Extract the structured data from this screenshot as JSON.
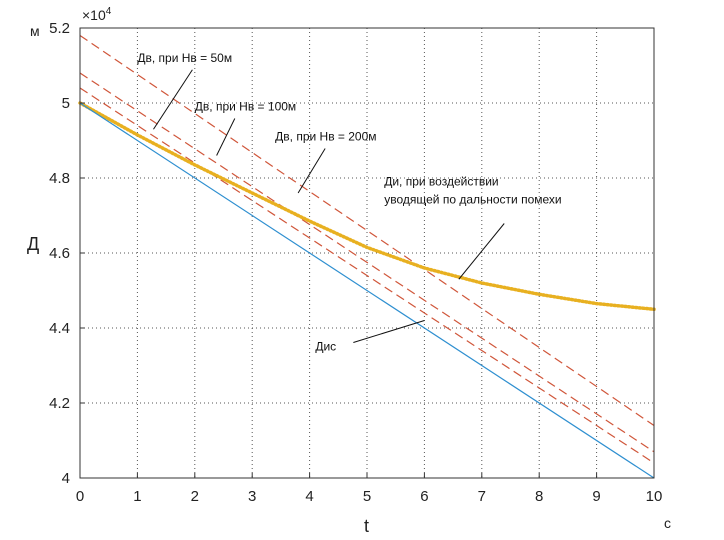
{
  "chart_data": {
    "type": "line",
    "xlim": [
      0,
      10
    ],
    "ylim": [
      40000,
      52000
    ],
    "x_ticks": [
      0,
      1,
      2,
      3,
      4,
      5,
      6,
      7,
      8,
      9,
      10
    ],
    "x_tick_labels": [
      "0",
      "1",
      "2",
      "3",
      "4",
      "5",
      "6",
      "7",
      "8",
      "9",
      "10"
    ],
    "y_ticks": [
      40000,
      42000,
      44000,
      46000,
      48000,
      50000,
      52000
    ],
    "y_tick_labels": [
      "4",
      "4.2",
      "4.4",
      "4.6",
      "4.8",
      "5",
      "5.2"
    ],
    "y_multiplier": "×10",
    "y_multiplier_exp": "4",
    "xlabel": "t",
    "ylabel": "Д",
    "x_unit": "с",
    "y_unit": "м",
    "grid": true,
    "series": [
      {
        "name": "Дв, при Нв = 50м",
        "style": "dashed",
        "color": "#d0563a",
        "x": [
          0,
          10
        ],
        "y": [
          51800,
          41400
        ]
      },
      {
        "name": "Дв, при Нв = 100м",
        "style": "dashed",
        "color": "#d0563a",
        "x": [
          0,
          10
        ],
        "y": [
          50800,
          40700
        ]
      },
      {
        "name": "Дв, при Нв = 200м",
        "style": "dashed",
        "color": "#d0563a",
        "x": [
          0,
          10
        ],
        "y": [
          50400,
          40400
        ]
      },
      {
        "name": "Ди, при воздействии уводящей по дальности помехи",
        "style": "dotted",
        "color": "#e8b020",
        "x": [
          0,
          1,
          2,
          3,
          4,
          5,
          6,
          7,
          8,
          9,
          10
        ],
        "y": [
          50000,
          49150,
          48350,
          47600,
          46850,
          46150,
          45600,
          45200,
          44900,
          44650,
          44500
        ]
      },
      {
        "name": "Дис",
        "style": "solid",
        "color": "#2e8fd0",
        "x": [
          0,
          10
        ],
        "y": [
          50000,
          40000
        ]
      }
    ],
    "annotations": [
      {
        "text": "Дв, при Нв = 50м",
        "at": [
          1.28,
          49300
        ],
        "label": [
          1.0,
          51100
        ]
      },
      {
        "text": "Дв, при Нв = 100м",
        "at": [
          2.38,
          48600
        ],
        "label": [
          2.0,
          49800
        ]
      },
      {
        "text": "Дв, при Нв = 200м",
        "at": [
          3.8,
          47600
        ],
        "label": [
          3.4,
          49000
        ]
      },
      {
        "text": "Ди, при воздействии",
        "text2": "уводящей по дальности помехи",
        "at": [
          6.6,
          45300
        ],
        "label": [
          5.3,
          47800
        ]
      },
      {
        "text": "Дис",
        "at": [
          6.0,
          44200
        ],
        "label": [
          4.1,
          43400
        ]
      }
    ]
  }
}
